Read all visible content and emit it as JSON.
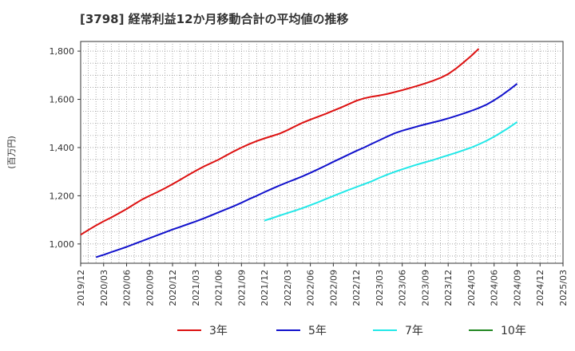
{
  "chart_data": {
    "type": "line",
    "title": "[3798]  経常利益12か月移動合計の平均値の推移",
    "ylabel": "(百万円)",
    "xlabel": "",
    "ylim": [
      920,
      1840
    ],
    "yticks": [
      1000,
      1200,
      1400,
      1600,
      1800
    ],
    "ytick_labels": [
      "1,000",
      "1,200",
      "1,400",
      "1,600",
      "1,800"
    ],
    "xticks": [
      "2019/12",
      "2020/03",
      "2020/06",
      "2020/09",
      "2020/12",
      "2021/03",
      "2021/06",
      "2021/09",
      "2021/12",
      "2022/03",
      "2022/06",
      "2022/09",
      "2022/12",
      "2023/03",
      "2023/06",
      "2023/09",
      "2023/12",
      "2024/03",
      "2024/06",
      "2024/09",
      "2024/12",
      "2025/03"
    ],
    "grid": true,
    "legend_position": "bottom",
    "series": [
      {
        "name": "3年",
        "color": "#dd1111",
        "start_month": "2019/12",
        "values": [
          1038,
          1058,
          1077,
          1094,
          1110,
          1127,
          1145,
          1165,
          1184,
          1200,
          1215,
          1231,
          1248,
          1266,
          1285,
          1303,
          1320,
          1335,
          1350,
          1367,
          1384,
          1400,
          1414,
          1427,
          1438,
          1448,
          1458,
          1472,
          1488,
          1503,
          1516,
          1528,
          1540,
          1553,
          1566,
          1580,
          1594,
          1604,
          1611,
          1616,
          1622,
          1630,
          1638,
          1647,
          1656,
          1666,
          1677,
          1689,
          1705,
          1727,
          1753,
          1780,
          1810
        ]
      },
      {
        "name": "5年",
        "color": "#1111cc",
        "start_month": "2020/02",
        "values": [
          945,
          955,
          966,
          977,
          988,
          1000,
          1012,
          1024,
          1036,
          1048,
          1060,
          1071,
          1082,
          1093,
          1105,
          1118,
          1131,
          1144,
          1157,
          1171,
          1186,
          1200,
          1215,
          1229,
          1243,
          1256,
          1268,
          1281,
          1295,
          1310,
          1325,
          1341,
          1356,
          1371,
          1386,
          1400,
          1415,
          1430,
          1445,
          1459,
          1470,
          1479,
          1488,
          1496,
          1504,
          1512,
          1521,
          1531,
          1541,
          1552,
          1564,
          1578,
          1596,
          1617,
          1640,
          1665
        ]
      },
      {
        "name": "7年",
        "color": "#22e8e8",
        "start_month": "2021/12",
        "values": [
          1097,
          1107,
          1118,
          1128,
          1138,
          1149,
          1161,
          1173,
          1186,
          1199,
          1212,
          1224,
          1236,
          1248,
          1260,
          1274,
          1287,
          1299,
          1310,
          1320,
          1330,
          1339,
          1348,
          1358,
          1368,
          1378,
          1389,
          1400,
          1413,
          1428,
          1445,
          1464,
          1484,
          1506
        ]
      },
      {
        "name": "10年",
        "color": "#228822",
        "start_month": "2019/12",
        "values": []
      }
    ]
  }
}
